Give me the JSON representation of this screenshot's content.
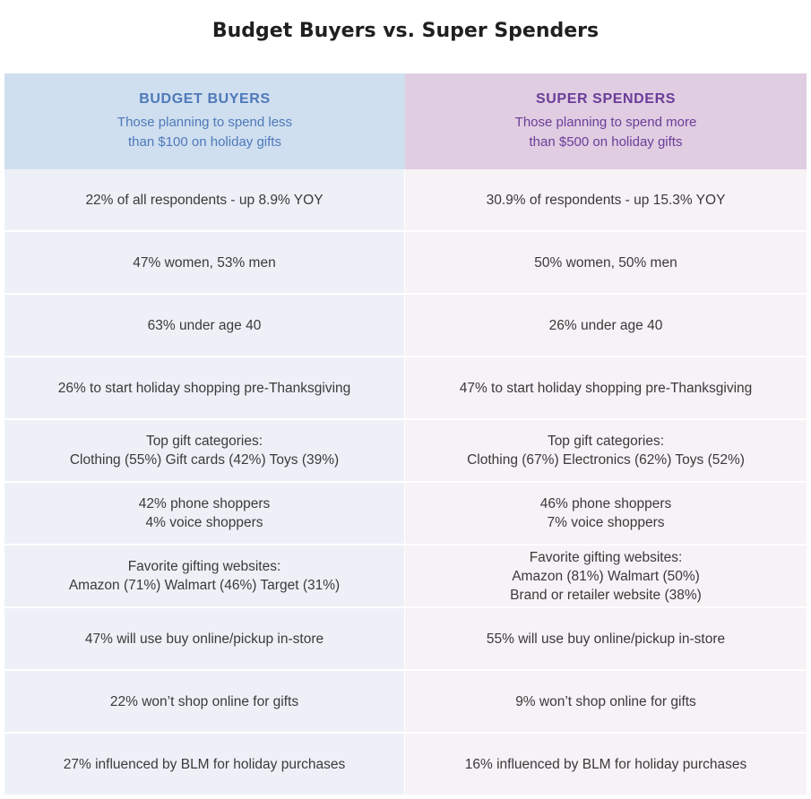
{
  "title": "Budget Buyers vs. Super Spenders",
  "columns": [
    {
      "name": "BUDGET BUYERS",
      "desc_line1": "Those planning to spend less",
      "desc_line2": "than $100 on holiday gifts"
    },
    {
      "name": "SUPER SPENDERS",
      "desc_line1": "Those planning to spend more",
      "desc_line2": "than $500 on holiday gifts"
    }
  ],
  "colors": {
    "budget_header_bg": "#cfdff0",
    "budget_header_text": "#4f78b8",
    "super_header_bg": "#e0cde2",
    "super_header_text": "#6a3d98"
  },
  "rows": [
    {
      "left": [
        "22% of all respondents - up 8.9% YOY"
      ],
      "right": [
        "30.9% of respondents - up 15.3% YOY"
      ]
    },
    {
      "left": [
        "47% women, 53% men"
      ],
      "right": [
        "50% women, 50% men"
      ]
    },
    {
      "left": [
        "63% under age 40"
      ],
      "right": [
        "26% under age 40"
      ]
    },
    {
      "left": [
        "26% to start holiday shopping pre-Thanksgiving"
      ],
      "right": [
        "47% to start holiday shopping pre-Thanksgiving"
      ]
    },
    {
      "left": [
        "Top gift categories:",
        "Clothing (55%) Gift cards (42%) Toys (39%)"
      ],
      "right": [
        "Top gift categories:",
        "Clothing (67%)  Electronics (62%)  Toys (52%)"
      ]
    },
    {
      "left": [
        "42% phone shoppers",
        "4% voice shoppers"
      ],
      "right": [
        "46% phone shoppers",
        "7% voice shoppers"
      ]
    },
    {
      "left": [
        "Favorite gifting websites:",
        "Amazon (71%)  Walmart (46%)  Target (31%)"
      ],
      "right": [
        "Favorite gifting websites:",
        "Amazon (81%)  Walmart (50%)",
        "Brand or retailer website (38%)"
      ]
    },
    {
      "left": [
        "47% will use buy online/pickup in-store"
      ],
      "right": [
        "55% will use buy online/pickup in-store"
      ]
    },
    {
      "left": [
        "22% won’t shop online for gifts"
      ],
      "right": [
        "9% won’t shop online for gifts"
      ]
    },
    {
      "left": [
        "27% influenced by BLM for holiday purchases"
      ],
      "right": [
        "16% influenced by BLM for holiday purchases"
      ]
    }
  ]
}
